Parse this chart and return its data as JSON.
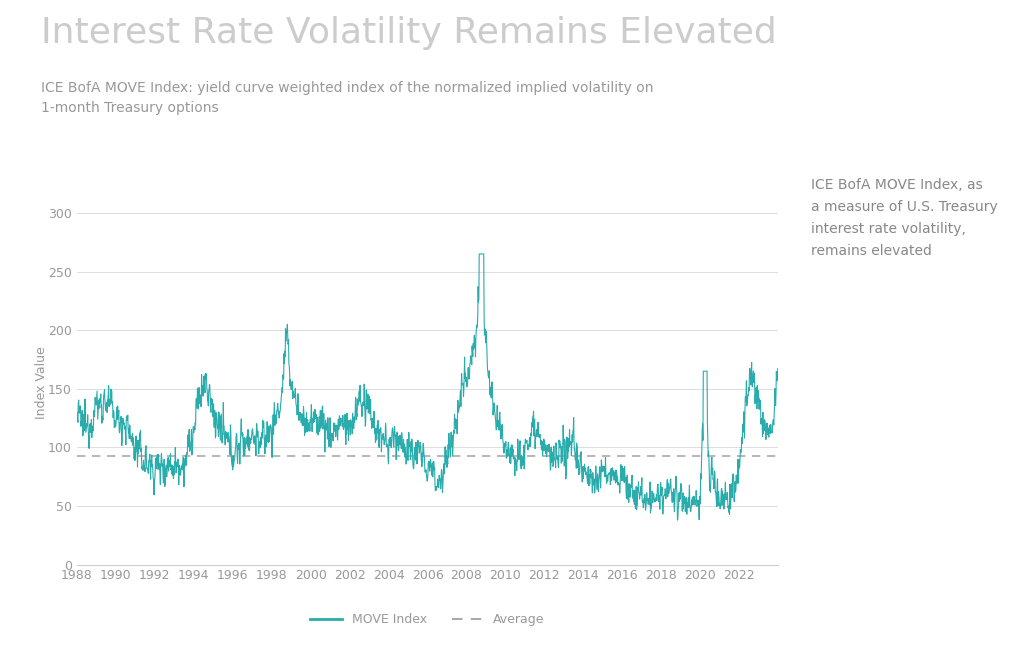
{
  "title": "Interest Rate Volatility Remains Elevated",
  "subtitle": "ICE BofA MOVE Index: yield curve weighted index of the normalized implied volatility on\n1-month Treasury options",
  "ylabel": "Index Value",
  "line_color": "#2aacac",
  "avg_color": "#aaaaaa",
  "background_color": "#ffffff",
  "legend_label_move": "MOVE Index",
  "legend_label_avg": "Average",
  "annotation": "ICE BofA MOVE Index, as\na measure of U.S. Treasury\ninterest rate volatility,\nremains elevated",
  "ylim": [
    0,
    310
  ],
  "yticks": [
    0,
    50,
    100,
    150,
    200,
    250,
    300
  ],
  "average_value": 93,
  "xlim_start": 1988.0,
  "xlim_end": 2024.0,
  "xtick_years": [
    1988,
    1990,
    1992,
    1994,
    1996,
    1998,
    2000,
    2002,
    2004,
    2006,
    2008,
    2010,
    2012,
    2014,
    2016,
    2018,
    2020,
    2022
  ]
}
